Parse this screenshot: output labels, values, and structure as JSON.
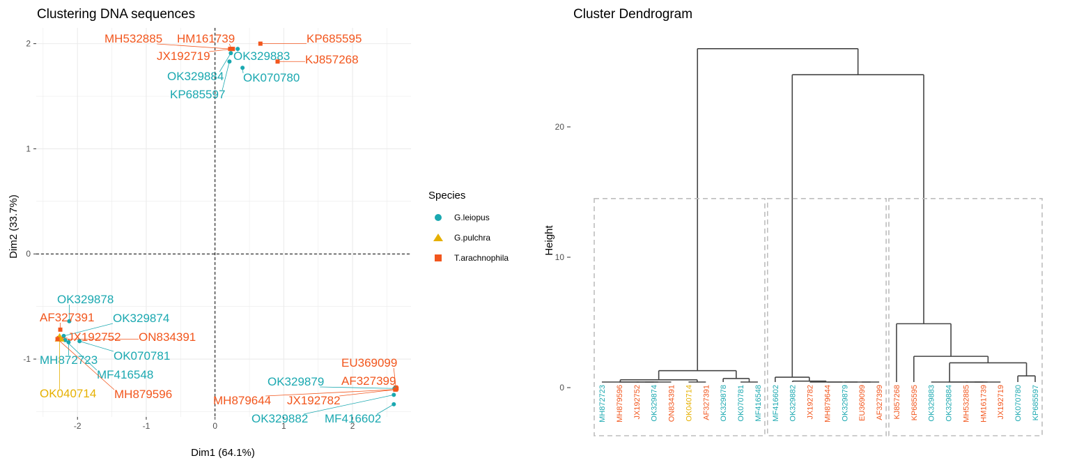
{
  "colors": {
    "G.leiopus": "#1aa8b0",
    "G.pulchra": "#e6b000",
    "T.arachnophila": "#f2561d",
    "grid": "#ebebeb",
    "dendro": "#444444",
    "rect": "#bdbdbd"
  },
  "left_chart": {
    "title": "Clustering DNA sequences",
    "xlabel": "Dim1 (64.1%)",
    "ylabel": "Dim2 (33.7%)",
    "xticks": [
      -2,
      -1,
      0,
      1,
      2
    ],
    "yticks": [
      2,
      1,
      0,
      -1
    ],
    "xlim": [
      -2.6,
      2.85
    ],
    "ylim": [
      -1.55,
      2.15
    ]
  },
  "legend": {
    "title": "Species",
    "items": [
      {
        "label": "G.leiopus",
        "species": "G.leiopus",
        "shape": "circle"
      },
      {
        "label": "G.pulchra",
        "species": "G.pulchra",
        "shape": "triangle"
      },
      {
        "label": "T.arachnophila",
        "species": "T.arachnophila",
        "shape": "square"
      }
    ]
  },
  "right_chart": {
    "title": "Cluster Dendrogram",
    "ylabel": "Height",
    "yticks": [
      0,
      10,
      20
    ]
  },
  "chart_data": [
    {
      "type": "scatter",
      "title": "Clustering DNA sequences",
      "xlabel": "Dim1 (64.1%)",
      "ylabel": "Dim2 (33.7%)",
      "xlim": [
        -2.6,
        2.85
      ],
      "ylim": [
        -1.55,
        2.15
      ],
      "legend_position": "right",
      "grid": true,
      "points": [
        {
          "label": "MH532885",
          "species": "T.arachnophila",
          "x": 0.22,
          "y": 1.95
        },
        {
          "label": "HM161739",
          "species": "T.arachnophila",
          "x": 0.24,
          "y": 1.95
        },
        {
          "label": "KP685595",
          "species": "T.arachnophila",
          "x": 0.66,
          "y": 2.0
        },
        {
          "label": "JX192719",
          "species": "T.arachnophila",
          "x": 0.26,
          "y": 1.95
        },
        {
          "label": "OK329883",
          "species": "G.leiopus",
          "x": 0.33,
          "y": 1.95
        },
        {
          "label": "KJ857268",
          "species": "T.arachnophila",
          "x": 0.91,
          "y": 1.83
        },
        {
          "label": "OK329884",
          "species": "G.leiopus",
          "x": 0.23,
          "y": 1.91
        },
        {
          "label": "OK070780",
          "species": "G.leiopus",
          "x": 0.4,
          "y": 1.77
        },
        {
          "label": "KP685597",
          "species": "G.leiopus",
          "x": 0.21,
          "y": 1.83
        },
        {
          "label": "OK329878",
          "species": "G.leiopus",
          "x": -2.12,
          "y": -0.64
        },
        {
          "label": "AF327391",
          "species": "T.arachnophila",
          "x": -2.25,
          "y": -0.72
        },
        {
          "label": "OK329874",
          "species": "G.leiopus",
          "x": -2.2,
          "y": -0.78
        },
        {
          "label": "JX192752",
          "species": "T.arachnophila",
          "x": -2.27,
          "y": -0.8
        },
        {
          "label": "ON834391",
          "species": "T.arachnophila",
          "x": -2.24,
          "y": -0.81
        },
        {
          "label": "MH872723",
          "species": "G.leiopus",
          "x": -2.13,
          "y": -0.84
        },
        {
          "label": "OK070781",
          "species": "G.leiopus",
          "x": -1.97,
          "y": -0.83
        },
        {
          "label": "MF416548",
          "species": "G.leiopus",
          "x": -2.18,
          "y": -0.82
        },
        {
          "label": "OK040714",
          "species": "G.pulchra",
          "x": -2.26,
          "y": -0.8
        },
        {
          "label": "MH879596",
          "species": "T.arachnophila",
          "x": -2.29,
          "y": -0.81
        },
        {
          "label": "EU369099",
          "species": "T.arachnophila",
          "x": 2.63,
          "y": -1.27
        },
        {
          "label": "AF327399",
          "species": "T.arachnophila",
          "x": 2.64,
          "y": -1.28
        },
        {
          "label": "OK329879",
          "species": "G.leiopus",
          "x": 2.61,
          "y": -1.28
        },
        {
          "label": "MH879644",
          "species": "T.arachnophila",
          "x": 2.62,
          "y": -1.29
        },
        {
          "label": "JX192782",
          "species": "T.arachnophila",
          "x": 2.63,
          "y": -1.29
        },
        {
          "label": "OK329882",
          "species": "G.leiopus",
          "x": 2.6,
          "y": -1.34
        },
        {
          "label": "MF416602",
          "species": "G.leiopus",
          "x": 2.6,
          "y": -1.43
        }
      ]
    },
    {
      "type": "dendrogram",
      "title": "Cluster Dendrogram",
      "ylabel": "Height",
      "ylim": [
        -3.6,
        26
      ],
      "leaves": [
        {
          "label": "MH872723",
          "species": "G.leiopus"
        },
        {
          "label": "MH879596",
          "species": "T.arachnophila"
        },
        {
          "label": "JX192752",
          "species": "T.arachnophila"
        },
        {
          "label": "OK329874",
          "species": "G.leiopus"
        },
        {
          "label": "ON834391",
          "species": "T.arachnophila"
        },
        {
          "label": "OK040714",
          "species": "G.pulchra"
        },
        {
          "label": "AF327391",
          "species": "T.arachnophila"
        },
        {
          "label": "OK329878",
          "species": "G.leiopus"
        },
        {
          "label": "OK070781",
          "species": "G.leiopus"
        },
        {
          "label": "MF416548",
          "species": "G.leiopus"
        },
        {
          "label": "MF416602",
          "species": "G.leiopus"
        },
        {
          "label": "OK329882",
          "species": "G.leiopus"
        },
        {
          "label": "JX192782",
          "species": "T.arachnophila"
        },
        {
          "label": "MH879644",
          "species": "T.arachnophila"
        },
        {
          "label": "OK329879",
          "species": "G.leiopus"
        },
        {
          "label": "EU369099",
          "species": "T.arachnophila"
        },
        {
          "label": "AF327399",
          "species": "T.arachnophila"
        },
        {
          "label": "KJ857268",
          "species": "T.arachnophila"
        },
        {
          "label": "KP685595",
          "species": "T.arachnophila"
        },
        {
          "label": "OK329883",
          "species": "G.leiopus"
        },
        {
          "label": "OK329884",
          "species": "G.leiopus"
        },
        {
          "label": "MH532885",
          "species": "T.arachnophila"
        },
        {
          "label": "HM161739",
          "species": "T.arachnophila"
        },
        {
          "label": "JX192719",
          "species": "T.arachnophila"
        },
        {
          "label": "OK070780",
          "species": "G.leiopus"
        },
        {
          "label": "KP685597",
          "species": "G.leiopus"
        }
      ],
      "merges": [
        {
          "left": 2,
          "right": 3,
          "height": 0.2
        },
        {
          "left": "m0",
          "right": 4,
          "height": 0.0
        },
        {
          "left": 1,
          "right": "m1",
          "height": 0.3
        },
        {
          "left": 0,
          "right": "m2",
          "height": 0.4
        },
        {
          "left": 5,
          "right": 6,
          "height": 0.4
        },
        {
          "left": "m3",
          "right": "m4",
          "height": 0.6
        },
        {
          "left": 8,
          "right": 9,
          "height": 0.0
        },
        {
          "left": 7,
          "right": "m6",
          "height": 0.7
        },
        {
          "left": "m5",
          "right": "m7",
          "height": 1.3
        },
        {
          "left": 15,
          "right": 16,
          "height": 0.0
        },
        {
          "left": 14,
          "right": "m9",
          "height": 0.0
        },
        {
          "left": 13,
          "right": "m10",
          "height": 0.0
        },
        {
          "left": 12,
          "right": "m11",
          "height": 0.3
        },
        {
          "left": 11,
          "right": "m12",
          "height": 0.5
        },
        {
          "left": 10,
          "right": "m13",
          "height": 0.8
        },
        {
          "left": 21,
          "right": 22,
          "height": 0.0
        },
        {
          "left": "m15",
          "right": 23,
          "height": 0.2
        },
        {
          "left": 20,
          "right": "m16",
          "height": 0.3
        },
        {
          "left": 19,
          "right": "m17",
          "height": 0.4
        },
        {
          "left": 24,
          "right": 25,
          "height": 0.9
        },
        {
          "left": "m18",
          "right": "m19",
          "height": 1.9
        },
        {
          "left": 18,
          "right": "m20",
          "height": 2.4
        },
        {
          "left": 17,
          "right": "m21",
          "height": 4.9
        },
        {
          "left": "m14",
          "right": "m22",
          "height": 24.0
        },
        {
          "left": "m8",
          "right": "m23",
          "height": 26.0
        }
      ],
      "cluster_boxes": [
        {
          "from": 0,
          "to": 9
        },
        {
          "from": 10,
          "to": 16
        },
        {
          "from": 17,
          "to": 25
        }
      ],
      "cut_height": 14.5
    }
  ]
}
